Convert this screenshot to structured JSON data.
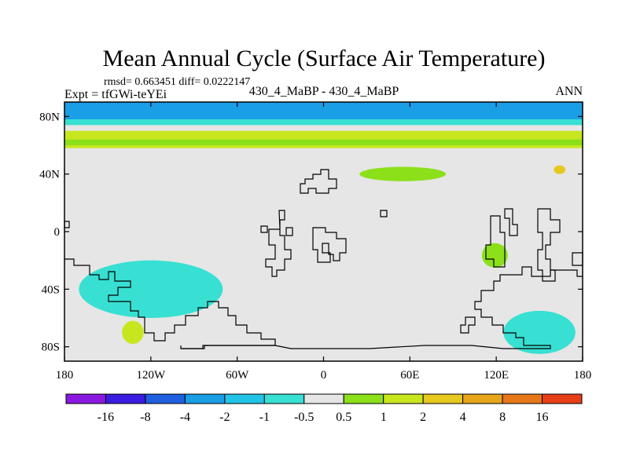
{
  "chart_data": {
    "type": "heatmap",
    "title": "Mean Annual Cycle (Surface Air Temperature)",
    "stats_label": "rmsd= 0.663451 diff= 0.0222147",
    "experiment_label": "Expt = tfGWi-teYEi",
    "comparison_label": "430_4_MaBP - 430_4_MaBP",
    "season_label": "ANN",
    "x_axis": {
      "range": [
        -180,
        180
      ],
      "ticks": [
        -180,
        -120,
        -60,
        0,
        60,
        120,
        180
      ],
      "tick_labels": [
        "180",
        "120W",
        "60W",
        "0",
        "60E",
        "120E",
        "180"
      ]
    },
    "y_axis": {
      "range": [
        -90,
        90
      ],
      "ticks": [
        80,
        40,
        0,
        -40,
        -80
      ],
      "tick_labels": [
        "80N",
        "40N",
        "0",
        "40S",
        "80S"
      ]
    },
    "colorbar": {
      "colors": [
        "#8a19e0",
        "#3a1de0",
        "#1f5fe0",
        "#1a9ee6",
        "#21c4e6",
        "#37e0d2",
        "#e6e6e6",
        "#8be01a",
        "#c8e61e",
        "#e6c81e",
        "#e6a51a",
        "#e6781a",
        "#e63f1a"
      ],
      "boundaries": [
        -16,
        -8,
        -4,
        -2,
        -1,
        -0.5,
        0.5,
        1,
        2,
        4,
        8,
        16
      ],
      "labels": [
        "-16",
        "-8",
        "-4",
        "-2",
        "-1",
        "-0.5",
        "0.5",
        "1",
        "2",
        "4",
        "8",
        "16"
      ]
    },
    "field_regions": [
      {
        "name": "arctic-band",
        "level": "-4 to -2",
        "color": "#1a9ee6",
        "lon": [
          -180,
          180
        ],
        "lat": [
          78,
          90
        ]
      },
      {
        "name": "arctic-margin",
        "level": "-1 to -0.5",
        "color": "#37e0d2",
        "lon": [
          -180,
          180
        ],
        "lat": [
          74,
          78
        ]
      },
      {
        "name": "high-lat-warm-band",
        "level": "1 to 2",
        "color": "#c8e61e",
        "lon": [
          -180,
          180
        ],
        "lat": [
          58,
          70
        ]
      },
      {
        "name": "high-lat-warm-core",
        "level": "0.5 to 1",
        "color": "#8be01a",
        "lon": [
          -180,
          180
        ],
        "lat": [
          60,
          64
        ]
      },
      {
        "name": "north-pacific-warm-spot",
        "level": "2 to 4",
        "color": "#e6c81e",
        "lon": [
          160,
          168
        ],
        "lat": [
          40,
          46
        ]
      },
      {
        "name": "midlat-atlantic-warm",
        "level": "0.5 to 1",
        "color": "#8be01a",
        "lon": [
          25,
          85
        ],
        "lat": [
          35,
          45
        ]
      },
      {
        "name": "south-pacific-cool",
        "level": "-1 to -0.5",
        "color": "#37e0d2",
        "lon": [
          -170,
          -70
        ],
        "lat": [
          -60,
          -20
        ]
      },
      {
        "name": "southern-ocean-cool",
        "level": "-1 to -0.5",
        "color": "#37e0d2",
        "lon": [
          125,
          175
        ],
        "lat": [
          -85,
          -55
        ]
      },
      {
        "name": "antarctic-warm",
        "level": "1 to 2",
        "color": "#c8e61e",
        "lon": [
          -140,
          -125
        ],
        "lat": [
          -78,
          -62
        ]
      },
      {
        "name": "australia-warm",
        "level": "0.5 to 1",
        "color": "#8be01a",
        "lon": [
          110,
          128
        ],
        "lat": [
          -25,
          -8
        ]
      }
    ]
  }
}
